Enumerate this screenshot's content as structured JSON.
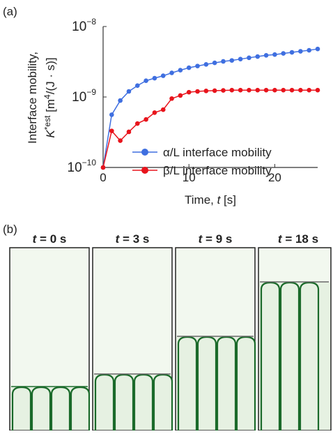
{
  "panel_label": "(a)",
  "chart_data": {
    "type": "line",
    "ylabel": [
      "Interface mobility,",
      "K",
      "*est",
      " [m",
      "4",
      "/(J · s)]"
    ],
    "xlabel": [
      "Time, ",
      "t",
      " [s]"
    ],
    "x": [
      0,
      1,
      2,
      3,
      4,
      5,
      6,
      7,
      8,
      9,
      10,
      11,
      12,
      13,
      14,
      15,
      16,
      17,
      18,
      19,
      20,
      21,
      22,
      23,
      24,
      25
    ],
    "series": [
      {
        "name": "α/L interface mobility",
        "color": "#3f6fe0",
        "values": [
          1e-10,
          5.6e-10,
          8.9e-10,
          1.2e-09,
          1.45e-09,
          1.7e-09,
          1.85e-09,
          2e-09,
          2.2e-09,
          2.4e-09,
          2.6e-09,
          2.75e-09,
          2.9e-09,
          3.05e-09,
          3.2e-09,
          3.3e-09,
          3.45e-09,
          3.6e-09,
          3.75e-09,
          3.9e-09,
          4e-09,
          4.15e-09,
          4.3e-09,
          4.45e-09,
          4.6e-09,
          4.8e-09
        ]
      },
      {
        "name": "β/L interface mobility",
        "color": "#e8141c",
        "values": [
          1e-10,
          3.3e-10,
          2.4e-10,
          3.2e-10,
          4.2e-10,
          4.8e-10,
          6e-10,
          6.6e-10,
          9.5e-10,
          1.05e-09,
          1.17e-09,
          1.2e-09,
          1.22e-09,
          1.23e-09,
          1.24e-09,
          1.25e-09,
          1.25e-09,
          1.25e-09,
          1.25e-09,
          1.25e-09,
          1.25e-09,
          1.25e-09,
          1.25e-09,
          1.25e-09,
          1.25e-09,
          1.25e-09
        ]
      }
    ],
    "xlim": [
      0,
      25
    ],
    "xticks": [
      0,
      10,
      20
    ],
    "ylim": [
      1e-10,
      1e-08
    ],
    "log_y": true,
    "yticks": [
      {
        "value": 1e-10,
        "label": "10",
        "exponent": "−10"
      },
      {
        "value": 1e-09,
        "label": "10",
        "exponent": "−9"
      },
      {
        "value": 1e-08,
        "label": "10",
        "exponent": "−8"
      }
    ],
    "legend": "lower right"
  },
  "panel_b": {
    "label": "(b)",
    "panels": [
      {
        "var": "t",
        "rest": " = 0 s"
      },
      {
        "var": "t",
        "rest": " = 3 s"
      },
      {
        "var": "t",
        "rest": " = 9 s"
      },
      {
        "var": "t",
        "rest": " = 18 s"
      }
    ]
  }
}
